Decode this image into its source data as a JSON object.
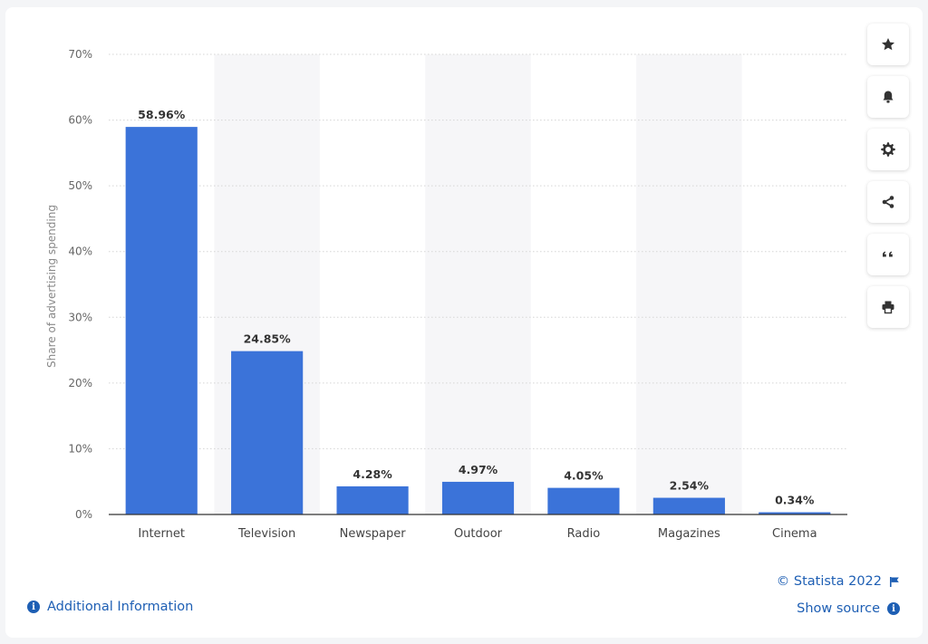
{
  "chart_data": {
    "type": "bar",
    "title": "",
    "xlabel": "",
    "ylabel": "Share of advertising spending",
    "categories": [
      "Internet",
      "Television",
      "Newspaper",
      "Outdoor",
      "Radio",
      "Magazines",
      "Cinema"
    ],
    "values": [
      58.96,
      24.85,
      4.28,
      4.97,
      4.05,
      2.54,
      0.34
    ],
    "data_labels": [
      "58.96%",
      "24.85%",
      "4.28%",
      "4.97%",
      "4.05%",
      "2.54%",
      "0.34%"
    ],
    "ylim": [
      0,
      70
    ],
    "yticks": [
      0,
      10,
      20,
      30,
      40,
      50,
      60,
      70
    ],
    "ytick_labels": [
      "0%",
      "10%",
      "20%",
      "30%",
      "40%",
      "50%",
      "60%",
      "70%"
    ],
    "grid": true,
    "legend": "none",
    "bar_color": "#3b73d9",
    "band_color": "#f6f6f8"
  },
  "toolbar": {
    "buttons": [
      {
        "name": "favorite-button",
        "icon": "star-icon"
      },
      {
        "name": "notification-button",
        "icon": "bell-icon"
      },
      {
        "name": "settings-button",
        "icon": "gear-icon"
      },
      {
        "name": "share-button",
        "icon": "share-icon"
      },
      {
        "name": "cite-button",
        "icon": "quote-icon"
      },
      {
        "name": "print-button",
        "icon": "printer-icon"
      }
    ]
  },
  "footer": {
    "additional_info": "Additional Information",
    "copyright": "© Statista 2022",
    "show_source": "Show source",
    "info_glyph": "i"
  }
}
